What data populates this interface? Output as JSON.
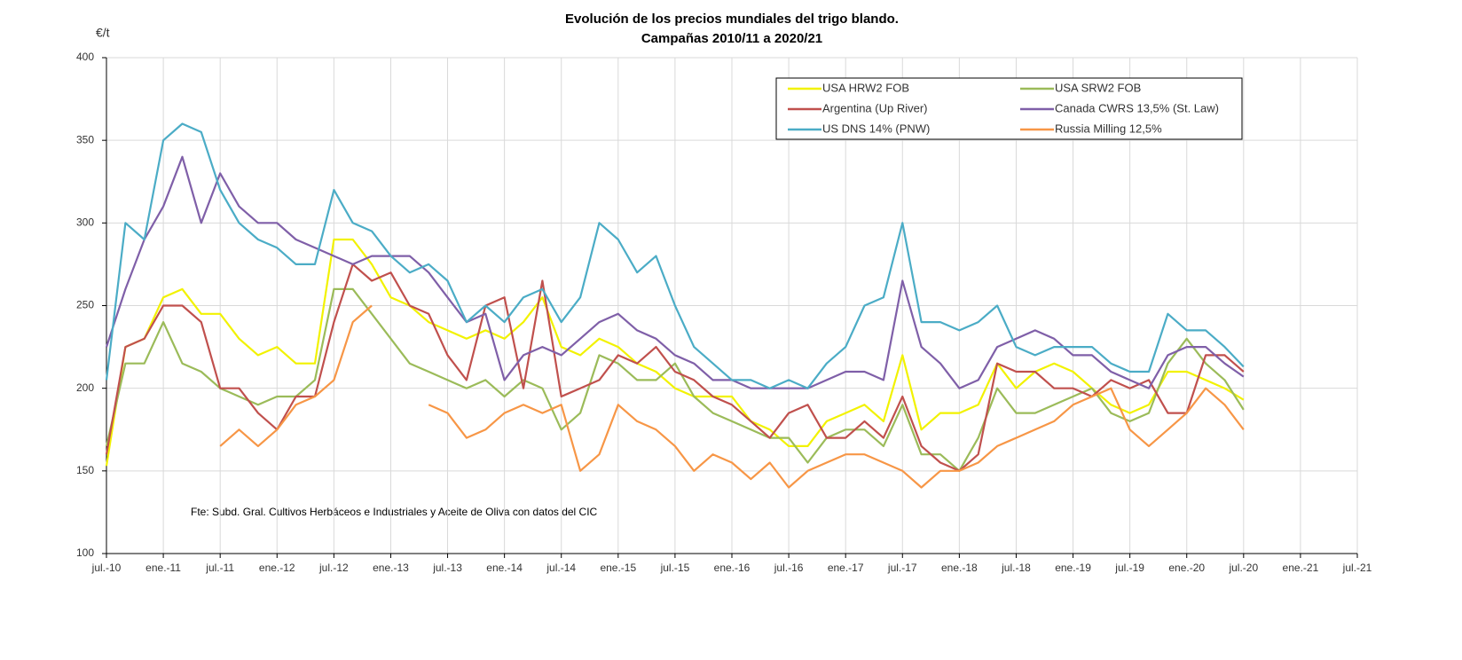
{
  "chart_data": {
    "type": "line",
    "title": "Evolución de los precios mundiales del trigo blando.",
    "subtitle": "Campañas 2010/11 a 2020/21",
    "y_label": "€/t",
    "annotation": "Fte: Subd. Gral. Cultivos Herbáceos e Industriales y Aceite de Oliva con datos del CIC",
    "categories": [
      "jul.-10",
      null,
      null,
      "ene.-11",
      null,
      null,
      "jul.-11",
      null,
      null,
      "ene.-12",
      null,
      null,
      "jul.-12",
      null,
      null,
      "ene.-13",
      null,
      null,
      "jul.-13",
      null,
      null,
      "ene.-14",
      null,
      null,
      "jul.-14",
      null,
      null,
      "ene.-15",
      null,
      null,
      "jul.-15",
      null,
      null,
      "ene.-16",
      null,
      null,
      "jul.-16",
      null,
      null,
      "ene.-17",
      null,
      null,
      "jul.-17",
      null,
      null,
      "ene.-18",
      null,
      null,
      "jul.-18",
      null,
      null,
      "ene.-19",
      null,
      null,
      "jul.-19",
      null,
      null,
      "ene.-20",
      null,
      null,
      "jul.-20",
      null,
      null,
      "ene.-21",
      null,
      null,
      "jul.-21"
    ],
    "series": [
      {
        "name": "USA HRW2 FOB",
        "color": "#f2f200",
        "values": [
          153,
          225,
          230,
          255,
          260,
          245,
          245,
          230,
          220,
          225,
          215,
          215,
          290,
          290,
          275,
          255,
          250,
          240,
          235,
          230,
          235,
          230,
          240,
          255,
          225,
          220,
          230,
          225,
          215,
          210,
          200,
          195,
          195,
          195,
          180,
          175,
          165,
          165,
          180,
          185,
          190,
          180,
          220,
          175,
          185,
          185,
          190,
          215,
          200,
          210,
          215,
          210,
          200,
          190,
          185,
          190,
          210,
          210,
          205,
          200,
          193,
          null,
          null,
          null,
          null,
          null,
          null
        ]
      },
      {
        "name": "USA SRW2 FOB",
        "color": "#9bbb59",
        "values": [
          165,
          215,
          215,
          240,
          215,
          210,
          200,
          195,
          190,
          195,
          195,
          205,
          260,
          260,
          245,
          230,
          215,
          210,
          205,
          200,
          205,
          195,
          205,
          200,
          175,
          185,
          220,
          215,
          205,
          205,
          215,
          195,
          185,
          180,
          175,
          170,
          170,
          155,
          170,
          175,
          175,
          165,
          190,
          160,
          160,
          150,
          170,
          200,
          185,
          185,
          190,
          195,
          200,
          185,
          180,
          185,
          215,
          230,
          215,
          205,
          187,
          null,
          null,
          null,
          null,
          null,
          null
        ]
      },
      {
        "name": "Argentina (Up River)",
        "color": "#c0504d",
        "values": [
          160,
          225,
          230,
          250,
          250,
          240,
          200,
          200,
          185,
          175,
          195,
          195,
          240,
          275,
          265,
          270,
          250,
          245,
          220,
          205,
          250,
          255,
          200,
          265,
          195,
          200,
          205,
          220,
          215,
          225,
          210,
          205,
          195,
          190,
          180,
          170,
          185,
          190,
          170,
          170,
          180,
          170,
          195,
          165,
          155,
          150,
          160,
          215,
          210,
          210,
          200,
          200,
          195,
          205,
          200,
          205,
          185,
          185,
          220,
          220,
          210,
          null,
          null,
          null,
          null,
          null,
          null
        ]
      },
      {
        "name": "Canada CWRS 13,5% (St. Law)",
        "color": "#7f5fa8",
        "values": [
          225,
          260,
          290,
          310,
          340,
          300,
          330,
          310,
          300,
          300,
          290,
          285,
          280,
          275,
          280,
          280,
          280,
          270,
          255,
          240,
          245,
          205,
          220,
          225,
          220,
          230,
          240,
          245,
          235,
          230,
          220,
          215,
          205,
          205,
          200,
          200,
          200,
          200,
          205,
          210,
          210,
          205,
          265,
          225,
          215,
          200,
          205,
          225,
          230,
          235,
          230,
          220,
          220,
          210,
          205,
          200,
          220,
          225,
          225,
          215,
          207,
          null,
          null,
          null,
          null,
          null,
          null
        ]
      },
      {
        "name": "US DNS 14% (PNW)",
        "color": "#4bacc6",
        "values": [
          205,
          300,
          290,
          350,
          360,
          355,
          320,
          300,
          290,
          285,
          275,
          275,
          320,
          300,
          295,
          280,
          270,
          275,
          265,
          240,
          250,
          240,
          255,
          260,
          240,
          255,
          300,
          290,
          270,
          280,
          250,
          225,
          215,
          205,
          205,
          200,
          205,
          200,
          215,
          225,
          250,
          255,
          300,
          240,
          240,
          235,
          240,
          250,
          225,
          220,
          225,
          225,
          225,
          215,
          210,
          210,
          245,
          235,
          235,
          225,
          213,
          null,
          null,
          null,
          null,
          null,
          null
        ]
      },
      {
        "name": "Russia Milling 12,5%",
        "color": "#f79646",
        "values": [
          null,
          null,
          null,
          null,
          null,
          null,
          165,
          175,
          165,
          175,
          190,
          195,
          205,
          240,
          250,
          null,
          null,
          190,
          185,
          170,
          175,
          185,
          190,
          185,
          190,
          150,
          160,
          190,
          180,
          175,
          165,
          150,
          160,
          155,
          145,
          155,
          140,
          150,
          155,
          160,
          160,
          155,
          150,
          140,
          150,
          150,
          155,
          165,
          170,
          175,
          180,
          190,
          195,
          200,
          175,
          165,
          175,
          185,
          200,
          190,
          175,
          null,
          null,
          null,
          null,
          null,
          null
        ]
      }
    ],
    "ylim": [
      100,
      400
    ],
    "yticks": [
      100,
      150,
      200,
      250,
      300,
      350,
      400
    ],
    "grid": true,
    "legend": "upper right"
  }
}
